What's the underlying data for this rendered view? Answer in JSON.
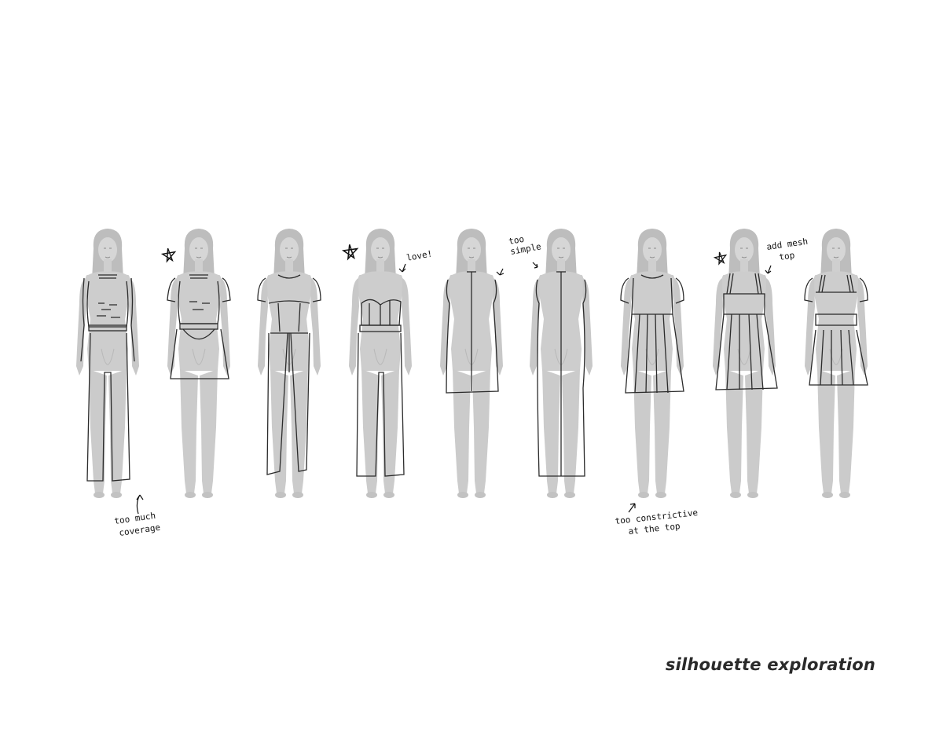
{
  "title": "silhouette exploration",
  "annotations": {
    "too_much_coverage_1": "too much",
    "too_much_coverage_2": "coverage",
    "love": "love!",
    "too_simple_1": "too",
    "too_simple_2": "simple",
    "add_mesh_1": "add mesh",
    "add_mesh_2": "top",
    "too_constrictive_1": "too constrictive",
    "too_constrictive_2": "at the top"
  },
  "figures": [
    {
      "garment": "knit crop top with long pants",
      "starred": false
    },
    {
      "garment": "knit crop top with mesh overlay skirt",
      "starred": true
    },
    {
      "garment": "paneled full-length jumpsuit",
      "starred": false
    },
    {
      "garment": "corset bodice with overlay pants",
      "starred": true
    },
    {
      "garment": "high-neck mini dress with center seam",
      "starred": false
    },
    {
      "garment": "high-neck long overlay dress",
      "starred": false
    },
    {
      "garment": "short-sleeve top with pleated skirt",
      "starred": false
    },
    {
      "garment": "strappy bandeau with pleated skirt",
      "starred": true
    },
    {
      "garment": "paneled top with short skirt",
      "starred": false
    }
  ],
  "colors": {
    "figure_fill": "#cfcfcf",
    "figure_shadow": "#b5b5b5",
    "hair": "#b9b9b9",
    "sketch_line": "#2b2b2b",
    "garment_tint": "#c4c4c4"
  }
}
